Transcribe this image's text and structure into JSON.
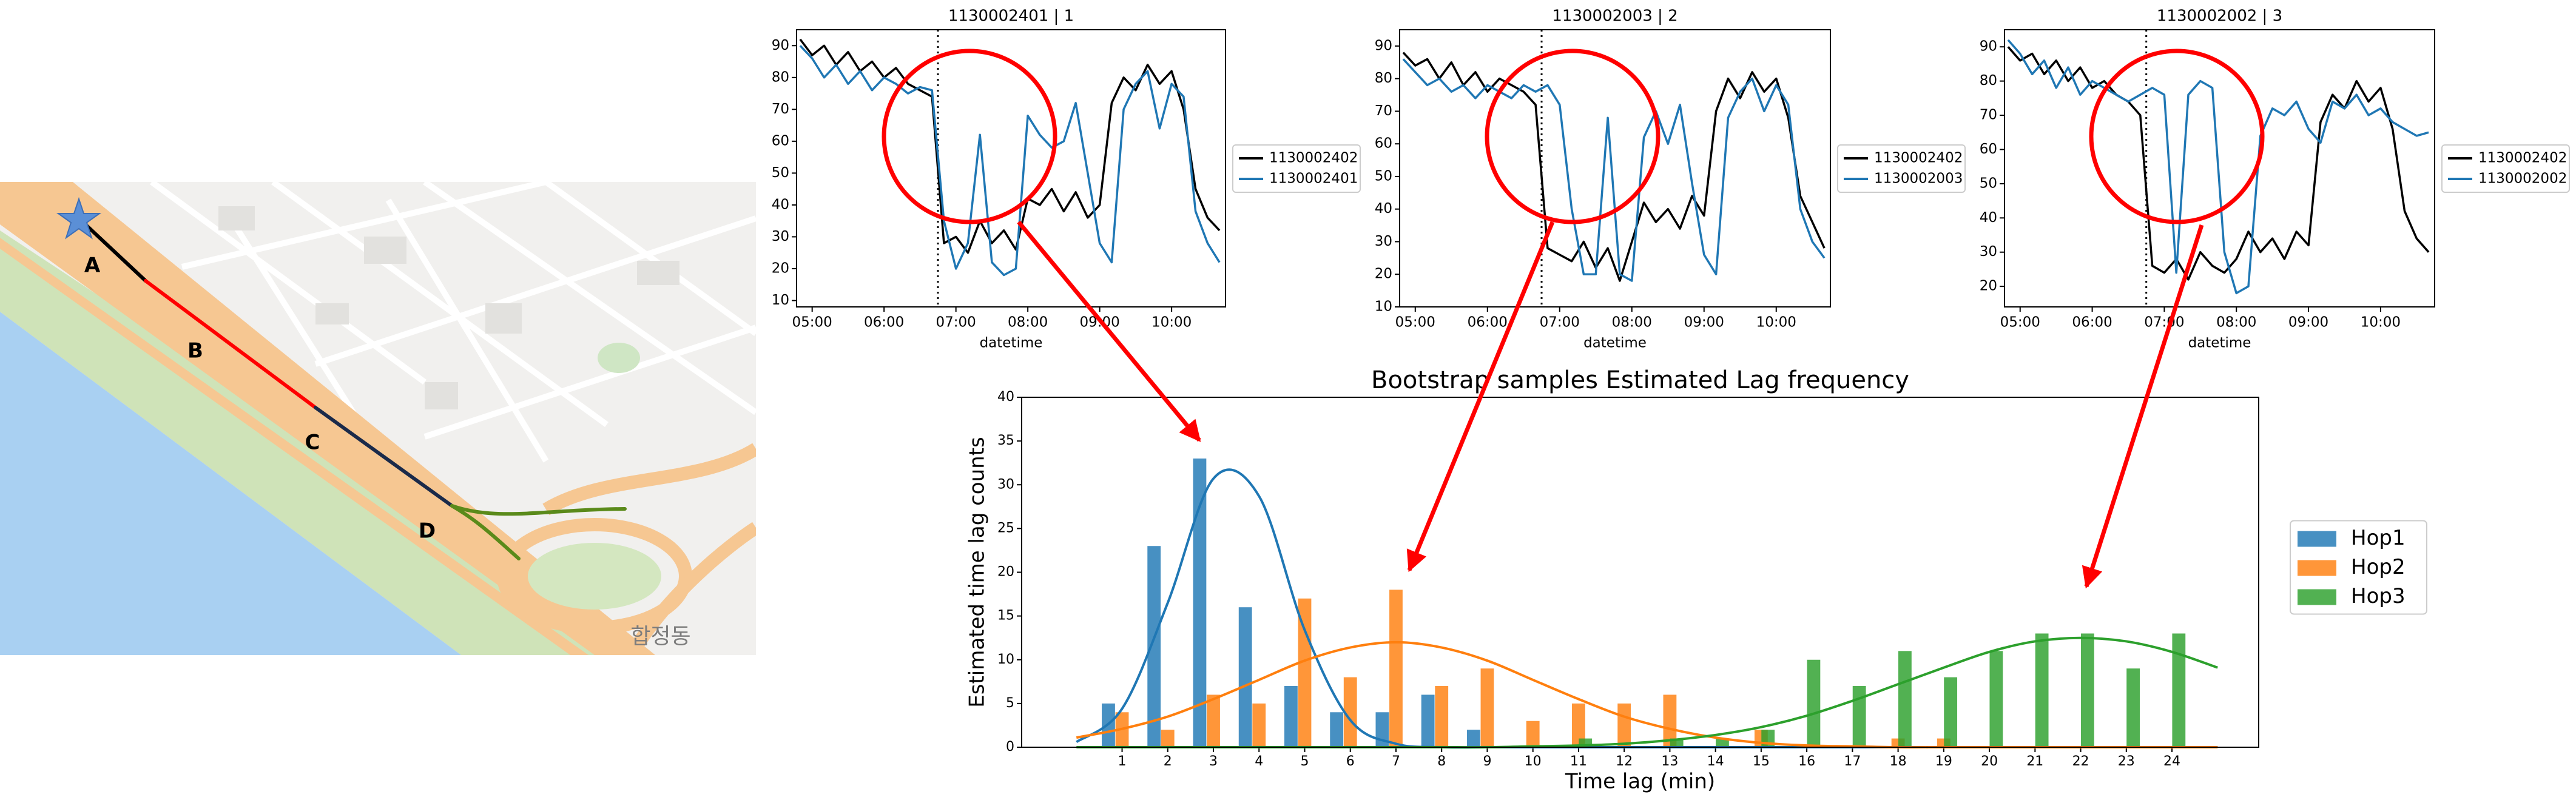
{
  "map": {
    "labels": [
      "A",
      "B",
      "C",
      "D"
    ],
    "place": "합정동"
  },
  "chart_data": [
    {
      "type": "line",
      "title": "1130002401 | 1",
      "xlabel": "datetime",
      "x": [
        "04:50",
        "05:00",
        "05:10",
        "05:20",
        "05:30",
        "05:40",
        "05:50",
        "06:00",
        "06:10",
        "06:20",
        "06:30",
        "06:40",
        "06:50",
        "07:00",
        "07:10",
        "07:20",
        "07:30",
        "07:40",
        "07:50",
        "08:00",
        "08:10",
        "08:20",
        "08:30",
        "08:40",
        "08:50",
        "09:00",
        "09:10",
        "09:20",
        "09:30",
        "09:40",
        "09:50",
        "10:00",
        "10:10",
        "10:20",
        "10:30",
        "10:40"
      ],
      "xlim": [
        "04:47",
        "10:45"
      ],
      "xticks": [
        "05:00",
        "06:00",
        "07:00",
        "08:00",
        "09:00",
        "10:00"
      ],
      "ylim": [
        8,
        95
      ],
      "yticks": [
        10,
        20,
        30,
        40,
        50,
        60,
        70,
        80,
        90
      ],
      "vline": "06:45",
      "legend": "right",
      "series": [
        {
          "name": "1130002402",
          "color": "#000000",
          "values": [
            92,
            87,
            90,
            84,
            88,
            82,
            85,
            80,
            83,
            78,
            76,
            74,
            28,
            30,
            25,
            35,
            28,
            32,
            26,
            42,
            40,
            45,
            38,
            44,
            36,
            40,
            72,
            80,
            76,
            84,
            78,
            82,
            70,
            45,
            36,
            32
          ]
        },
        {
          "name": "1130002401",
          "color": "#1f77b4",
          "values": [
            90,
            86,
            80,
            84,
            78,
            82,
            76,
            80,
            78,
            75,
            77,
            76,
            35,
            20,
            28,
            62,
            22,
            18,
            20,
            68,
            62,
            58,
            60,
            72,
            50,
            28,
            22,
            70,
            78,
            82,
            64,
            78,
            74,
            38,
            28,
            22
          ]
        }
      ]
    },
    {
      "type": "line",
      "title": "1130002003 | 2",
      "xlabel": "datetime",
      "x": [
        "04:50",
        "05:00",
        "05:10",
        "05:20",
        "05:30",
        "05:40",
        "05:50",
        "06:00",
        "06:10",
        "06:20",
        "06:30",
        "06:40",
        "06:50",
        "07:00",
        "07:10",
        "07:20",
        "07:30",
        "07:40",
        "07:50",
        "08:00",
        "08:10",
        "08:20",
        "08:30",
        "08:40",
        "08:50",
        "09:00",
        "09:10",
        "09:20",
        "09:30",
        "09:40",
        "09:50",
        "10:00",
        "10:10",
        "10:20",
        "10:30",
        "10:40"
      ],
      "xlim": [
        "04:47",
        "10:45"
      ],
      "xticks": [
        "05:00",
        "06:00",
        "07:00",
        "08:00",
        "09:00",
        "10:00"
      ],
      "ylim": [
        10,
        95
      ],
      "yticks": [
        10,
        20,
        30,
        40,
        50,
        60,
        70,
        80,
        90
      ],
      "vline": "06:45",
      "legend": "right",
      "series": [
        {
          "name": "1130002402",
          "color": "#000000",
          "values": [
            88,
            84,
            86,
            80,
            85,
            78,
            82,
            76,
            80,
            78,
            76,
            72,
            28,
            26,
            24,
            30,
            22,
            28,
            18,
            30,
            42,
            36,
            40,
            34,
            44,
            38,
            70,
            80,
            74,
            82,
            76,
            80,
            68,
            44,
            36,
            28
          ]
        },
        {
          "name": "1130002003",
          "color": "#1f77b4",
          "values": [
            86,
            82,
            78,
            80,
            76,
            78,
            74,
            78,
            76,
            74,
            78,
            76,
            78,
            72,
            40,
            20,
            20,
            68,
            20,
            18,
            62,
            70,
            60,
            72,
            48,
            26,
            20,
            68,
            76,
            80,
            70,
            78,
            72,
            40,
            30,
            25
          ]
        }
      ]
    },
    {
      "type": "line",
      "title": "1130002002 | 3",
      "xlabel": "datetime",
      "x": [
        "04:50",
        "05:00",
        "05:10",
        "05:20",
        "05:30",
        "05:40",
        "05:50",
        "06:00",
        "06:10",
        "06:20",
        "06:30",
        "06:40",
        "06:50",
        "07:00",
        "07:10",
        "07:20",
        "07:30",
        "07:40",
        "07:50",
        "08:00",
        "08:10",
        "08:20",
        "08:30",
        "08:40",
        "08:50",
        "09:00",
        "09:10",
        "09:20",
        "09:30",
        "09:40",
        "09:50",
        "10:00",
        "10:10",
        "10:20",
        "10:30",
        "10:40"
      ],
      "xlim": [
        "04:47",
        "10:45"
      ],
      "xticks": [
        "05:00",
        "06:00",
        "07:00",
        "08:00",
        "09:00",
        "10:00"
      ],
      "ylim": [
        14,
        95
      ],
      "yticks": [
        20,
        30,
        40,
        50,
        60,
        70,
        80,
        90
      ],
      "vline": "06:45",
      "legend": "right",
      "series": [
        {
          "name": "1130002402",
          "color": "#000000",
          "values": [
            90,
            86,
            88,
            82,
            86,
            80,
            84,
            78,
            80,
            76,
            74,
            70,
            26,
            24,
            28,
            22,
            30,
            26,
            24,
            28,
            36,
            30,
            34,
            28,
            36,
            32,
            68,
            76,
            72,
            80,
            74,
            78,
            66,
            42,
            34,
            30
          ]
        },
        {
          "name": "1130002002",
          "color": "#1f77b4",
          "values": [
            92,
            88,
            82,
            86,
            78,
            84,
            76,
            80,
            78,
            76,
            74,
            76,
            78,
            76,
            24,
            76,
            80,
            78,
            30,
            18,
            20,
            64,
            72,
            70,
            74,
            66,
            62,
            74,
            72,
            76,
            70,
            72,
            68,
            66,
            64,
            65
          ]
        }
      ]
    },
    {
      "type": "bar",
      "title": "Bootstrap samples Estimated Lag frequency",
      "xlabel": "Time lag (min)",
      "ylabel": "Estimated time lag counts",
      "x": [
        1,
        2,
        3,
        4,
        5,
        6,
        7,
        8,
        9,
        10,
        11,
        12,
        13,
        14,
        15,
        16,
        17,
        18,
        19,
        20,
        21,
        22,
        23,
        24
      ],
      "xlim": [
        -1.2,
        25.9
      ],
      "xticks": [
        1,
        2,
        3,
        4,
        5,
        6,
        7,
        8,
        9,
        10,
        11,
        12,
        13,
        14,
        15,
        16,
        17,
        18,
        19,
        20,
        21,
        22,
        23,
        24
      ],
      "ylim": [
        0,
        40
      ],
      "yticks": [
        0,
        5,
        10,
        15,
        20,
        25,
        30,
        35,
        40
      ],
      "legend": "right",
      "fit_x": [
        0,
        1,
        2,
        3,
        4,
        5,
        6,
        7,
        8,
        9,
        10,
        11,
        12,
        13,
        14,
        15,
        16,
        17,
        18,
        19,
        20,
        21,
        22,
        23,
        24,
        25
      ],
      "series": [
        {
          "name": "Hop1",
          "color": "#1f77b4",
          "values": [
            5,
            23,
            33,
            16,
            7,
            4,
            4,
            6,
            2,
            0,
            0,
            0,
            0,
            0,
            0,
            0,
            0,
            0,
            0,
            0,
            0,
            0,
            0,
            0
          ],
          "fit_values": [
            0.6,
            4.4,
            16.5,
            30.7,
            28.7,
            13.4,
            3.1,
            0.4,
            0,
            0,
            0,
            0,
            0,
            0,
            0,
            0,
            0,
            0,
            0,
            0,
            0,
            0,
            0,
            0,
            0,
            0
          ]
        },
        {
          "name": "Hop2",
          "color": "#ff7f0e",
          "values": [
            4,
            2,
            6,
            5,
            17,
            8,
            18,
            7,
            9,
            3,
            5,
            5,
            6,
            0,
            2,
            0,
            0,
            1,
            1,
            0,
            0,
            0,
            0,
            0
          ],
          "fit_values": [
            1.1,
            2.1,
            3.5,
            5.5,
            7.7,
            9.9,
            11.4,
            12,
            11.4,
            9.9,
            7.7,
            5.5,
            3.5,
            2.1,
            1.1,
            0.5,
            0.2,
            0.1,
            0,
            0,
            0,
            0,
            0,
            0,
            0,
            0
          ]
        },
        {
          "name": "Hop3",
          "color": "#2ca02c",
          "values": [
            0,
            0,
            0,
            0,
            0,
            0,
            0,
            0,
            0,
            0,
            1,
            0,
            1,
            1,
            2,
            10,
            7,
            11,
            8,
            11,
            13,
            13,
            9,
            13
          ],
          "fit_values": [
            0,
            0,
            0,
            0,
            0,
            0,
            0,
            0,
            0,
            0,
            0.1,
            0.2,
            0.4,
            0.8,
            1.4,
            2.3,
            3.6,
            5.3,
            7.2,
            9.1,
            10.9,
            12.1,
            12.5,
            12.1,
            10.9,
            9.1
          ]
        }
      ]
    }
  ]
}
